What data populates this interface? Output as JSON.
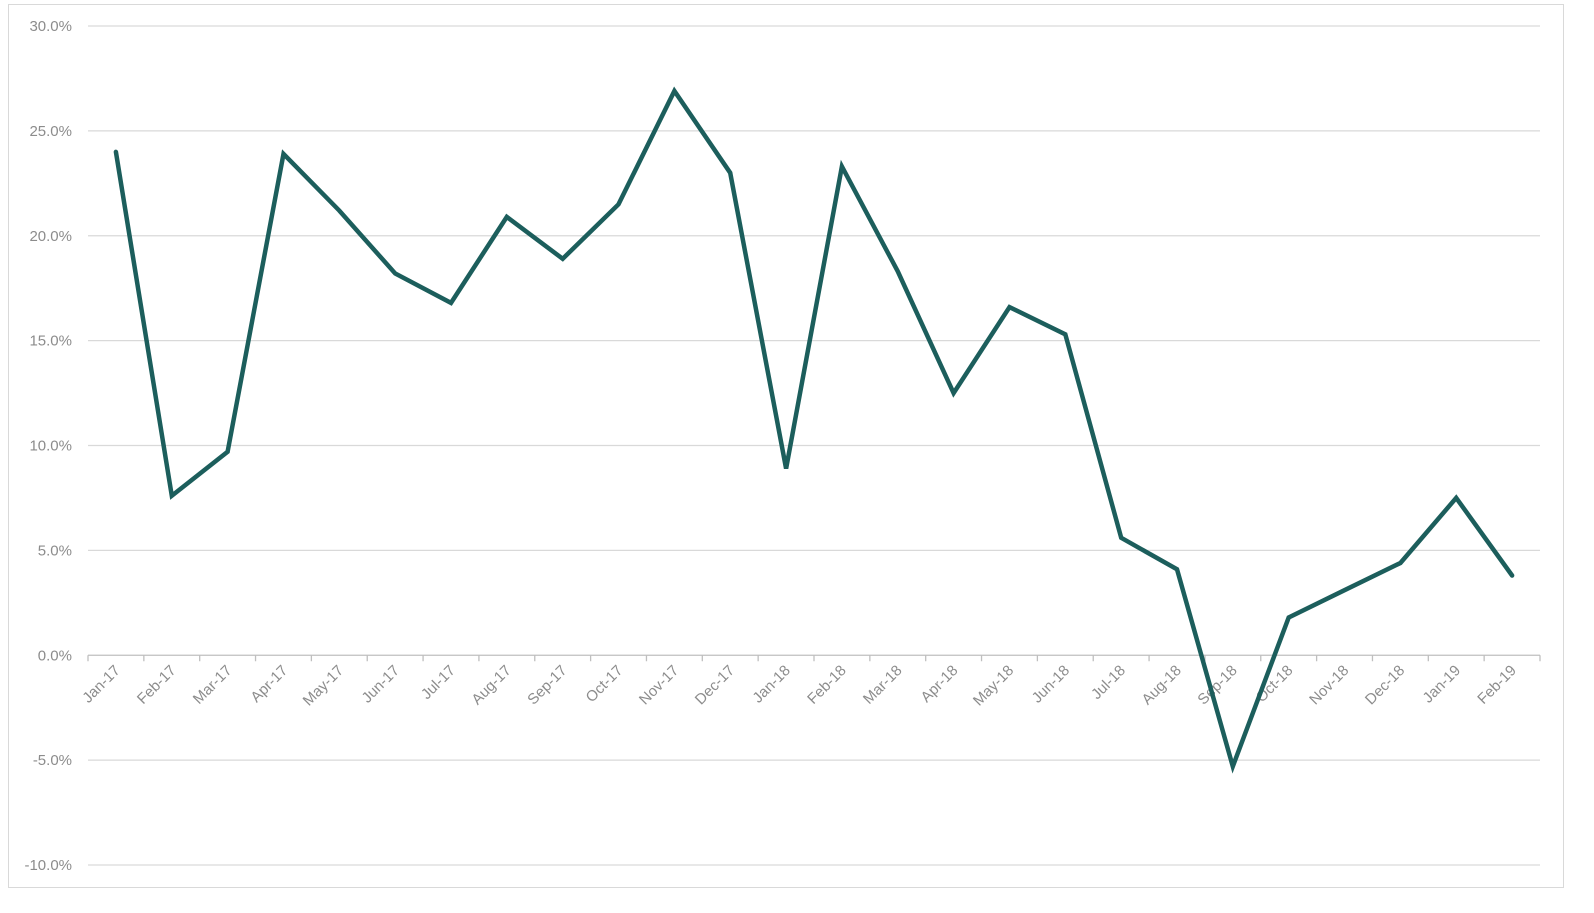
{
  "chart_data": {
    "type": "line",
    "title": "",
    "xlabel": "",
    "ylabel": "",
    "categories": [
      "Jan-17",
      "Feb-17",
      "Mar-17",
      "Apr-17",
      "May-17",
      "Jun-17",
      "Jul-17",
      "Aug-17",
      "Sep-17",
      "Oct-17",
      "Nov-17",
      "Dec-17",
      "Jan-18",
      "Feb-18",
      "Mar-18",
      "Apr-18",
      "May-18",
      "Jun-18",
      "Jul-18",
      "Aug-18",
      "Sep-18",
      "Oct-18",
      "Nov-18",
      "Dec-18",
      "Jan-19",
      "Feb-19"
    ],
    "series": [
      {
        "values": [
          24.0,
          7.6,
          9.7,
          23.9,
          21.2,
          18.2,
          16.8,
          20.9,
          18.9,
          21.5,
          26.9,
          23.0,
          8.9,
          23.3,
          18.3,
          12.5,
          16.6,
          15.3,
          5.6,
          4.1,
          -5.3,
          1.8,
          3.1,
          4.4,
          7.5,
          3.8
        ],
        "color": "#1c5e5c"
      }
    ],
    "ylim": [
      -10,
      30
    ],
    "yticks": [
      -10,
      -5,
      0,
      5,
      10,
      15,
      20,
      25,
      30
    ],
    "ytick_labels": [
      "-10.0%",
      "-5.0%",
      "0.0%",
      "5.0%",
      "10.0%",
      "15.0%",
      "20.0%",
      "25.0%",
      "30.0%"
    ],
    "grid": true,
    "legend": "none"
  }
}
